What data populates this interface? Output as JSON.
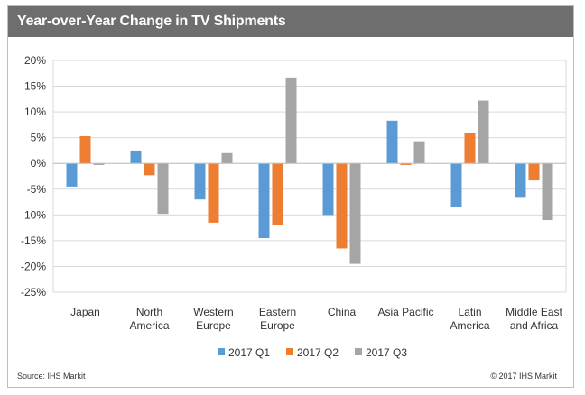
{
  "header": {
    "title": "Year-over-Year Change in TV Shipments"
  },
  "footer": {
    "source": "Source: IHS Markit",
    "copyright": "© 2017 IHS Markit"
  },
  "chart_data": {
    "type": "bar",
    "title": "Year-over-Year Change in TV Shipments",
    "xlabel": "",
    "ylabel": "",
    "ylim": [
      -25,
      20
    ],
    "yticks": [
      20,
      15,
      10,
      5,
      0,
      -5,
      -10,
      -15,
      -20,
      -25
    ],
    "ytick_labels": [
      "20%",
      "15%",
      "10%",
      "5%",
      "0%",
      "-5%",
      "-10%",
      "-15%",
      "-20%",
      "-25%"
    ],
    "grid": true,
    "legend_position": "bottom",
    "categories": [
      [
        "Japan"
      ],
      [
        "North",
        "America"
      ],
      [
        "Western",
        "Europe"
      ],
      [
        "Eastern",
        "Europe"
      ],
      [
        "China"
      ],
      [
        "Asia Pacific"
      ],
      [
        "Latin",
        "America"
      ],
      [
        "Middle East",
        "and Africa"
      ]
    ],
    "series": [
      {
        "name": "2017 Q1",
        "color": "#5b9bd5",
        "values": [
          -4.5,
          2.5,
          -7,
          -14.5,
          -10,
          8.3,
          -8.5,
          -6.5
        ]
      },
      {
        "name": "2017 Q2",
        "color": "#ed7d31",
        "values": [
          5.3,
          -2.3,
          -11.5,
          -12,
          -16.5,
          -0.3,
          6,
          -3.3
        ]
      },
      {
        "name": "2017 Q3",
        "color": "#a5a5a5",
        "values": [
          -0.3,
          -9.8,
          2,
          16.7,
          -19.5,
          4.3,
          12.2,
          -11
        ]
      }
    ]
  }
}
